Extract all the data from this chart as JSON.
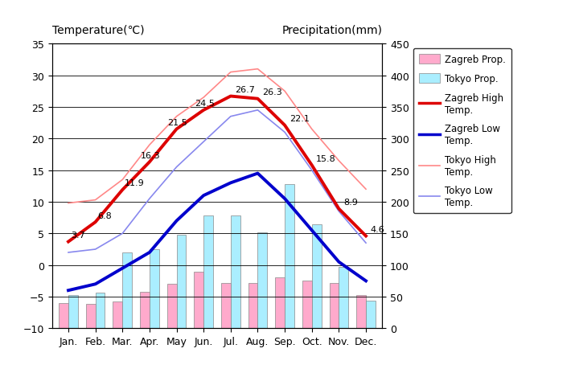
{
  "months": [
    "Jan.",
    "Feb.",
    "Mar.",
    "Apr.",
    "May",
    "Jun.",
    "Jul.",
    "Aug.",
    "Sep.",
    "Oct.",
    "Nov.",
    "Dec."
  ],
  "zagreb_high": [
    3.7,
    6.8,
    11.9,
    16.3,
    21.5,
    24.5,
    26.7,
    26.3,
    22.1,
    15.8,
    8.9,
    4.6
  ],
  "zagreb_low": [
    -4.0,
    -3.0,
    -0.5,
    2.0,
    7.0,
    11.0,
    13.0,
    14.5,
    10.5,
    5.5,
    0.5,
    -2.5
  ],
  "tokyo_high": [
    9.8,
    10.3,
    13.5,
    19.0,
    23.5,
    26.5,
    30.5,
    31.0,
    27.5,
    21.5,
    16.5,
    12.0
  ],
  "tokyo_low": [
    2.0,
    2.5,
    5.0,
    10.5,
    15.5,
    19.5,
    23.5,
    24.5,
    21.0,
    15.0,
    8.5,
    3.5
  ],
  "zagreb_precip_mm": [
    40,
    38,
    42,
    58,
    70,
    90,
    72,
    72,
    80,
    76,
    72,
    52
  ],
  "tokyo_precip_mm": [
    52,
    56,
    120,
    125,
    148,
    178,
    178,
    152,
    228,
    165,
    97,
    44
  ],
  "zagreb_high_color": "#dd0000",
  "zagreb_low_color": "#0000cc",
  "tokyo_high_color": "#ff8888",
  "tokyo_low_color": "#8888ee",
  "zagreb_precip_color": "#ffaacc",
  "tokyo_precip_color": "#aaeeff",
  "bg_color": "#c8c8c8",
  "ylim_temp": [
    -10,
    35
  ],
  "ylim_precip": [
    0,
    450
  ],
  "title_left": "Temperature(℃)",
  "title_right": "Precipitation(mm)",
  "yticks_temp": [
    -10,
    -5,
    0,
    5,
    10,
    15,
    20,
    25,
    30,
    35
  ],
  "yticks_precip": [
    0,
    50,
    100,
    150,
    200,
    250,
    300,
    350,
    400,
    450
  ]
}
